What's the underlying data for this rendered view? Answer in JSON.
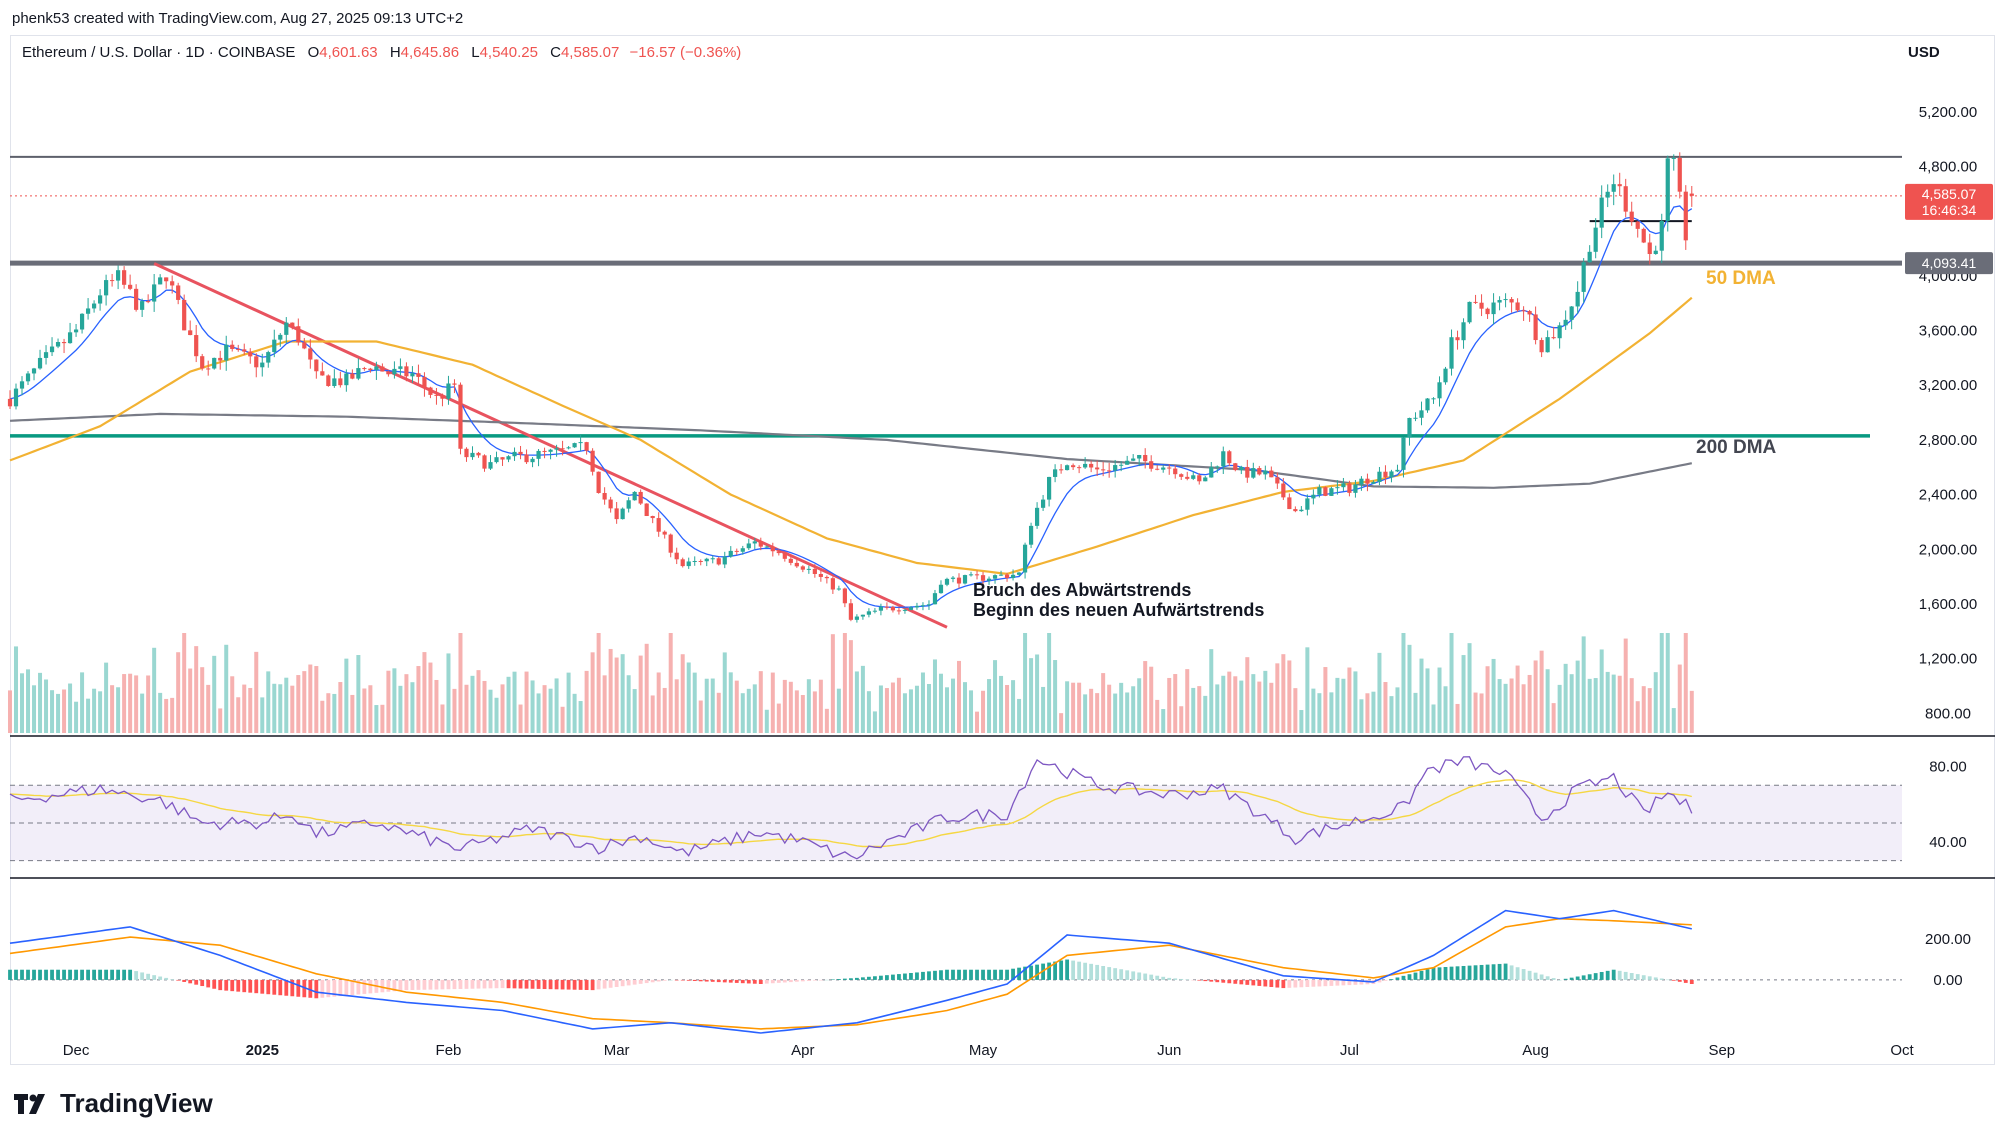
{
  "header": {
    "author_line": "phenk53 created with TradingView.com, Aug 27, 2025 09:13 UTC+2"
  },
  "legend": {
    "symbol": "Ethereum / U.S. Dollar · 1D · COINBASE",
    "o_label": "O",
    "open": "4,601.63",
    "h_label": "H",
    "high": "4,645.86",
    "l_label": "L",
    "low": "4,540.25",
    "c_label": "C",
    "close": "4,585.07",
    "change": "−16.57 (−0.36%)"
  },
  "currency": "USD",
  "price_tag": {
    "price": "4,585.07",
    "countdown": "16:46:34"
  },
  "level_tag": "4,093.41",
  "annotations": {
    "dma50": "50 DMA",
    "dma200": "200 DMA",
    "break_line1": "Bruch des Abwärtstrends",
    "break_line2": "Beginn des neuen Aufwärtstrends"
  },
  "footer": {
    "brand": "TradingView"
  },
  "colors": {
    "up": "#26a69a",
    "down": "#ef5350",
    "ma50": "#f2b233",
    "ma200": "#787b86",
    "ema": "#2962ff",
    "trendline": "#e8535f",
    "support": "#089981",
    "resistance": "#5d606b",
    "rsi": "#7e57c2",
    "rsi_ma": "#f5d743",
    "macd": "#2962ff",
    "signal": "#ff9800"
  },
  "chart_data": {
    "type": "candlestick",
    "title": "Ethereum / U.S. Dollar · 1D · COINBASE",
    "x_range": [
      "2024-11-20",
      "2025-10-01"
    ],
    "x_ticks": [
      "Dec",
      "2025",
      "Feb",
      "Mar",
      "Apr",
      "May",
      "Jun",
      "Jul",
      "Aug",
      "Sep",
      "Oct"
    ],
    "price_axis": {
      "ticks": [
        "5,200.00",
        "4,800.00",
        "4,000.00",
        "3,600.00",
        "3,200.00",
        "2,800.00",
        "2,400.00",
        "2,000.00",
        "1,600.00",
        "1,200.00",
        "800.00"
      ],
      "ylim": [
        620,
        5520
      ]
    },
    "rsi_axis": {
      "ticks": [
        "80.00",
        "40.00"
      ],
      "ylim": [
        25,
        93
      ],
      "band": [
        30,
        70
      ],
      "mid": 50
    },
    "macd_axis": {
      "ticks": [
        "200.00",
        "0.00"
      ],
      "ylim": [
        -270,
        480
      ]
    },
    "horizontal_levels": {
      "resistance": 4870,
      "breakout": 4093.41,
      "short_term_support": 4400,
      "support": 2830
    },
    "trendline": {
      "from": [
        "2024-12-14",
        4090
      ],
      "to": [
        "2025-04-25",
        1430
      ]
    },
    "price_path": [
      [
        "2024-11-20",
        3100
      ],
      [
        "2024-11-25",
        3350
      ],
      [
        "2024-12-01",
        3600
      ],
      [
        "2024-12-05",
        3880
      ],
      [
        "2024-12-08",
        3980
      ],
      [
        "2024-12-12",
        3750
      ],
      [
        "2024-12-16",
        4020
      ],
      [
        "2024-12-19",
        3650
      ],
      [
        "2024-12-22",
        3350
      ],
      [
        "2024-12-26",
        3450
      ],
      [
        "2025-01-01",
        3350
      ],
      [
        "2025-01-05",
        3650
      ],
      [
        "2025-01-07",
        3550
      ],
      [
        "2025-01-10",
        3250
      ],
      [
        "2025-01-15",
        3230
      ],
      [
        "2025-01-19",
        3350
      ],
      [
        "2025-01-22",
        3290
      ],
      [
        "2025-01-26",
        3280
      ],
      [
        "2025-01-30",
        3100
      ],
      [
        "2025-02-02",
        3200
      ],
      [
        "2025-02-03",
        2700
      ],
      [
        "2025-02-08",
        2620
      ],
      [
        "2025-02-12",
        2670
      ],
      [
        "2025-02-18",
        2700
      ],
      [
        "2025-02-24",
        2750
      ],
      [
        "2025-02-26",
        2450
      ],
      [
        "2025-03-01",
        2200
      ],
      [
        "2025-03-04",
        2420
      ],
      [
        "2025-03-07",
        2200
      ],
      [
        "2025-03-12",
        1880
      ],
      [
        "2025-03-18",
        1920
      ],
      [
        "2025-03-24",
        2050
      ],
      [
        "2025-03-28",
        1980
      ],
      [
        "2025-04-02",
        1850
      ],
      [
        "2025-04-07",
        1700
      ],
      [
        "2025-04-09",
        1480
      ],
      [
        "2025-04-14",
        1560
      ],
      [
        "2025-04-18",
        1580
      ],
      [
        "2025-04-22",
        1600
      ],
      [
        "2025-04-24",
        1770
      ],
      [
        "2025-04-30",
        1790
      ],
      [
        "2025-05-07",
        1820
      ],
      [
        "2025-05-09",
        2200
      ],
      [
        "2025-05-12",
        2500
      ],
      [
        "2025-05-15",
        2650
      ],
      [
        "2025-05-20",
        2580
      ],
      [
        "2025-05-27",
        2650
      ],
      [
        "2025-06-02",
        2590
      ],
      [
        "2025-06-06",
        2480
      ],
      [
        "2025-06-10",
        2700
      ],
      [
        "2025-06-13",
        2560
      ],
      [
        "2025-06-17",
        2550
      ],
      [
        "2025-06-22",
        2280
      ],
      [
        "2025-06-26",
        2420
      ],
      [
        "2025-07-01",
        2450
      ],
      [
        "2025-07-04",
        2520
      ],
      [
        "2025-07-09",
        2600
      ],
      [
        "2025-07-11",
        2950
      ],
      [
        "2025-07-15",
        3100
      ],
      [
        "2025-07-18",
        3500
      ],
      [
        "2025-07-21",
        3750
      ],
      [
        "2025-07-27",
        3800
      ],
      [
        "2025-07-30",
        3780
      ],
      [
        "2025-08-02",
        3500
      ],
      [
        "2025-08-05",
        3620
      ],
      [
        "2025-08-08",
        3900
      ],
      [
        "2025-08-10",
        4250
      ],
      [
        "2025-08-12",
        4500
      ],
      [
        "2025-08-14",
        4700
      ],
      [
        "2025-08-17",
        4450
      ],
      [
        "2025-08-19",
        4250
      ],
      [
        "2025-08-20",
        4150
      ],
      [
        "2025-08-22",
        4350
      ],
      [
        "2025-08-23",
        4800
      ],
      [
        "2025-08-24",
        4780
      ],
      [
        "2025-08-26",
        4300
      ],
      [
        "2025-08-27",
        4585.07
      ]
    ],
    "ma50_path": [
      [
        "2024-11-20",
        2650
      ],
      [
        "2024-12-05",
        2900
      ],
      [
        "2024-12-20",
        3300
      ],
      [
        "2025-01-05",
        3520
      ],
      [
        "2025-01-20",
        3520
      ],
      [
        "2025-02-05",
        3350
      ],
      [
        "2025-02-20",
        3050
      ],
      [
        "2025-03-05",
        2800
      ],
      [
        "2025-03-20",
        2400
      ],
      [
        "2025-04-05",
        2080
      ],
      [
        "2025-04-20",
        1900
      ],
      [
        "2025-05-05",
        1820
      ],
      [
        "2025-05-20",
        2020
      ],
      [
        "2025-06-05",
        2250
      ],
      [
        "2025-06-20",
        2420
      ],
      [
        "2025-07-05",
        2500
      ],
      [
        "2025-07-20",
        2650
      ],
      [
        "2025-08-05",
        3100
      ],
      [
        "2025-08-20",
        3580
      ],
      [
        "2025-08-27",
        3840
      ]
    ],
    "ma200_path": [
      [
        "2024-11-20",
        2940
      ],
      [
        "2024-12-15",
        2990
      ],
      [
        "2025-01-15",
        2970
      ],
      [
        "2025-02-15",
        2920
      ],
      [
        "2025-03-15",
        2870
      ],
      [
        "2025-04-15",
        2800
      ],
      [
        "2025-05-15",
        2660
      ],
      [
        "2025-06-15",
        2580
      ],
      [
        "2025-07-05",
        2460
      ],
      [
        "2025-07-25",
        2450
      ],
      [
        "2025-08-10",
        2480
      ],
      [
        "2025-08-27",
        2630
      ]
    ],
    "rsi_path": [
      [
        "2024-11-20",
        62
      ],
      [
        "2024-12-05",
        68
      ],
      [
        "2024-12-15",
        62
      ],
      [
        "2024-12-22",
        50
      ],
      [
        "2025-01-01",
        50
      ],
      [
        "2025-01-06",
        55
      ],
      [
        "2025-01-10",
        44
      ],
      [
        "2025-01-20",
        50
      ],
      [
        "2025-02-03",
        36
      ],
      [
        "2025-02-15",
        47
      ],
      [
        "2025-02-26",
        37
      ],
      [
        "2025-03-05",
        43
      ],
      [
        "2025-03-12",
        34
      ],
      [
        "2025-03-25",
        45
      ],
      [
        "2025-04-01",
        40
      ],
      [
        "2025-04-09",
        31
      ],
      [
        "2025-04-15",
        40
      ],
      [
        "2025-04-25",
        53
      ],
      [
        "2025-05-05",
        55
      ],
      [
        "2025-05-10",
        84
      ],
      [
        "2025-05-20",
        70
      ],
      [
        "2025-06-01",
        65
      ],
      [
        "2025-06-10",
        68
      ],
      [
        "2025-06-22",
        42
      ],
      [
        "2025-07-01",
        50
      ],
      [
        "2025-07-10",
        58
      ],
      [
        "2025-07-14",
        78
      ],
      [
        "2025-07-20",
        83
      ],
      [
        "2025-07-27",
        76
      ],
      [
        "2025-08-02",
        52
      ],
      [
        "2025-08-08",
        68
      ],
      [
        "2025-08-14",
        74
      ],
      [
        "2025-08-19",
        55
      ],
      [
        "2025-08-23",
        66
      ],
      [
        "2025-08-27",
        57
      ]
    ],
    "macd_path": [
      [
        "2024-11-20",
        180
      ],
      [
        "2024-12-10",
        260
      ],
      [
        "2024-12-25",
        120
      ],
      [
        "2025-01-10",
        -60
      ],
      [
        "2025-01-25",
        -110
      ],
      [
        "2025-02-10",
        -150
      ],
      [
        "2025-02-25",
        -240
      ],
      [
        "2025-03-10",
        -210
      ],
      [
        "2025-03-25",
        -260
      ],
      [
        "2025-04-10",
        -210
      ],
      [
        "2025-04-25",
        -100
      ],
      [
        "2025-05-05",
        -20
      ],
      [
        "2025-05-15",
        220
      ],
      [
        "2025-06-01",
        180
      ],
      [
        "2025-06-20",
        20
      ],
      [
        "2025-07-05",
        -10
      ],
      [
        "2025-07-15",
        120
      ],
      [
        "2025-07-27",
        340
      ],
      [
        "2025-08-05",
        300
      ],
      [
        "2025-08-14",
        340
      ],
      [
        "2025-08-27",
        250
      ]
    ],
    "signal_path": [
      [
        "2024-11-20",
        130
      ],
      [
        "2024-12-10",
        210
      ],
      [
        "2024-12-25",
        170
      ],
      [
        "2025-01-10",
        30
      ],
      [
        "2025-01-25",
        -60
      ],
      [
        "2025-02-10",
        -110
      ],
      [
        "2025-02-25",
        -190
      ],
      [
        "2025-03-10",
        -210
      ],
      [
        "2025-03-25",
        -240
      ],
      [
        "2025-04-10",
        -220
      ],
      [
        "2025-04-25",
        -150
      ],
      [
        "2025-05-05",
        -70
      ],
      [
        "2025-05-15",
        120
      ],
      [
        "2025-06-01",
        170
      ],
      [
        "2025-06-20",
        60
      ],
      [
        "2025-07-05",
        10
      ],
      [
        "2025-07-15",
        60
      ],
      [
        "2025-07-27",
        260
      ],
      [
        "2025-08-05",
        300
      ],
      [
        "2025-08-14",
        290
      ],
      [
        "2025-08-27",
        270
      ]
    ]
  }
}
